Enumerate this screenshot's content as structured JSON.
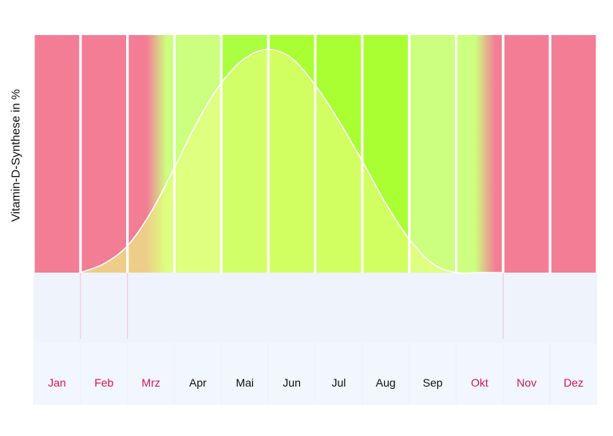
{
  "chart_data": {
    "type": "area",
    "ylabel": "Vitamin-D-Synthese in %",
    "categories": [
      "Jan",
      "Feb",
      "Mrz",
      "Apr",
      "Mai",
      "Jun",
      "Jul",
      "Aug",
      "Sep",
      "Okt",
      "Nov",
      "Dez"
    ],
    "x": [
      1.5,
      2.0,
      2.5,
      3.0,
      3.5,
      4.0,
      4.5,
      5.0,
      5.5,
      6.0,
      6.5,
      7.0,
      7.5,
      8.0,
      8.5,
      9.0,
      9.5,
      10.0,
      10.5
    ],
    "values": [
      0,
      4,
      12,
      27,
      47,
      68,
      85,
      96,
      100,
      96,
      84,
      68,
      50,
      31,
      15,
      4,
      0,
      0,
      0
    ],
    "ylim": [
      0,
      100
    ],
    "grid": false,
    "month_zone": [
      "none",
      "none",
      "transition",
      "low",
      "medium",
      "high",
      "high",
      "high",
      "low",
      "transition",
      "none",
      "none"
    ],
    "colors": {
      "none": "#f47d96",
      "low": "#ccff7f",
      "medium": "#aaff40",
      "high": "#aaff33",
      "area_fill": "#e8ff80",
      "curve": "#ffffff",
      "label_none": "#d6164e",
      "label_active": "#111111",
      "lower_band": "#eef3fc"
    }
  }
}
